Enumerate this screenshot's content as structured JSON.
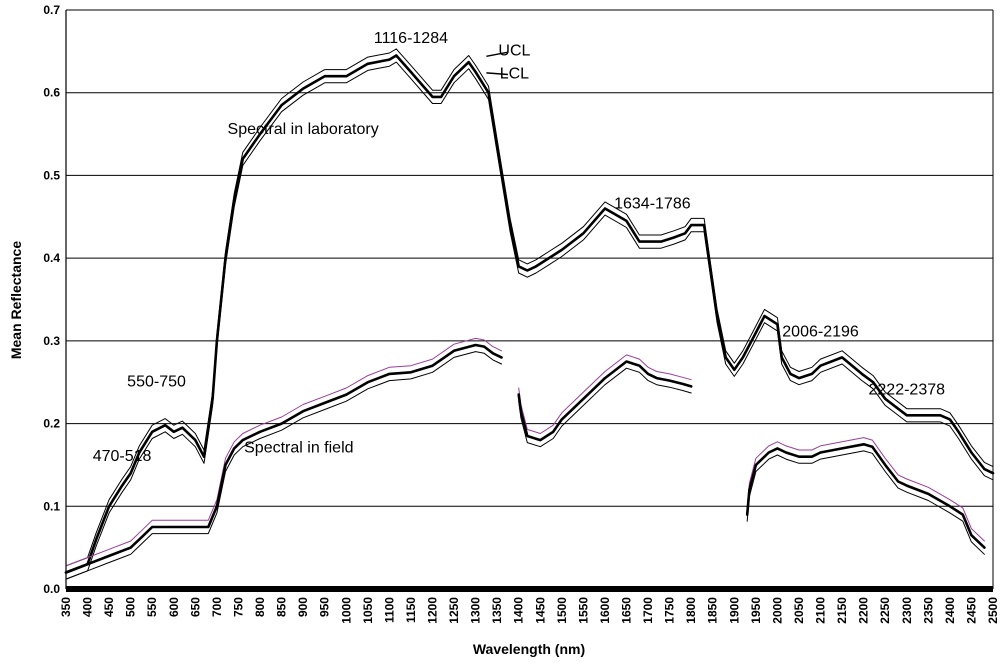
{
  "chart_data": {
    "type": "line",
    "title": "",
    "xlabel": "Wavelength (nm)",
    "ylabel": "Mean Reflectance",
    "xlim": [
      350,
      2500
    ],
    "ylim": [
      0,
      0.7
    ],
    "grid": true,
    "x_ticks": [
      350,
      400,
      450,
      500,
      550,
      600,
      650,
      700,
      750,
      800,
      850,
      900,
      950,
      1000,
      1050,
      1100,
      1150,
      1200,
      1250,
      1300,
      1350,
      1400,
      1450,
      1500,
      1550,
      1600,
      1650,
      1700,
      1750,
      1800,
      1850,
      1900,
      1950,
      2000,
      2050,
      2100,
      2150,
      2200,
      2250,
      2300,
      2350,
      2400,
      2450,
      2500
    ],
    "y_ticks": [
      0,
      0.1,
      0.2,
      0.3,
      0.4,
      0.5,
      0.6,
      0.7
    ],
    "y_tick_labels": [
      "0.0",
      "0.1",
      "0.2",
      "0.3",
      "0.4",
      "0.5",
      "0.6",
      "0.7"
    ],
    "annotations": [
      {
        "text": "470-518",
        "x": 480,
        "y": 0.155
      },
      {
        "text": "550-750",
        "x": 560,
        "y": 0.245
      },
      {
        "text": "1116-1284",
        "x": 1150,
        "y": 0.66
      },
      {
        "text": "UCL",
        "x": 1390,
        "y": 0.645
      },
      {
        "text": "LCL",
        "x": 1390,
        "y": 0.617
      },
      {
        "text": "Spectral in laboratory",
        "x": 900,
        "y": 0.55
      },
      {
        "text": "1634-1786",
        "x": 1710,
        "y": 0.46
      },
      {
        "text": "2006-2196",
        "x": 2100,
        "y": 0.305
      },
      {
        "text": "2222-2378",
        "x": 2300,
        "y": 0.235
      },
      {
        "text": "Spectral in field",
        "x": 890,
        "y": 0.165
      }
    ],
    "series": [
      {
        "name": "Spectral in laboratory (mean)",
        "color": "#000000",
        "x": [
          350,
          400,
          420,
          450,
          480,
          500,
          520,
          550,
          580,
          600,
          620,
          650,
          670,
          690,
          700,
          720,
          740,
          760,
          800,
          850,
          900,
          950,
          1000,
          1050,
          1100,
          1116,
          1150,
          1200,
          1220,
          1250,
          1284,
          1300,
          1330,
          1350,
          1380,
          1400,
          1420,
          1440,
          1470,
          1500,
          1550,
          1600,
          1650,
          1680,
          1700,
          1730,
          1760,
          1786,
          1800,
          1830,
          1860,
          1880,
          1900,
          1920,
          1950,
          1970,
          2000,
          2010,
          2030,
          2050,
          2080,
          2100,
          2150,
          2196,
          2222,
          2250,
          2300,
          2350,
          2378,
          2400,
          2420,
          2450,
          2480,
          2500
        ],
        "values": [
          0.02,
          0.03,
          0.06,
          0.1,
          0.125,
          0.14,
          0.165,
          0.19,
          0.198,
          0.19,
          0.195,
          0.18,
          0.16,
          0.23,
          0.3,
          0.4,
          0.47,
          0.52,
          0.55,
          0.585,
          0.605,
          0.62,
          0.62,
          0.635,
          0.64,
          0.645,
          0.625,
          0.595,
          0.595,
          0.62,
          0.637,
          0.625,
          0.6,
          0.535,
          0.44,
          0.39,
          0.385,
          0.39,
          0.4,
          0.41,
          0.43,
          0.46,
          0.445,
          0.42,
          0.42,
          0.42,
          0.425,
          0.43,
          0.44,
          0.44,
          0.33,
          0.28,
          0.265,
          0.28,
          0.31,
          0.33,
          0.32,
          0.28,
          0.26,
          0.255,
          0.26,
          0.27,
          0.28,
          0.26,
          0.25,
          0.23,
          0.21,
          0.21,
          0.21,
          0.205,
          0.19,
          0.165,
          0.145,
          0.14
        ]
      },
      {
        "name": "Spectral in field (mean) segment 1",
        "color": "#000000",
        "x": [
          350,
          400,
          450,
          500,
          520,
          550,
          580,
          600,
          650,
          680,
          700,
          720,
          740,
          760,
          800,
          850,
          900,
          950,
          1000,
          1050,
          1100,
          1150,
          1200,
          1250,
          1300,
          1320,
          1340,
          1360
        ],
        "values": [
          0.02,
          0.03,
          0.04,
          0.05,
          0.06,
          0.075,
          0.075,
          0.075,
          0.075,
          0.075,
          0.1,
          0.15,
          0.17,
          0.18,
          0.19,
          0.2,
          0.215,
          0.225,
          0.235,
          0.25,
          0.26,
          0.262,
          0.27,
          0.288,
          0.295,
          0.293,
          0.285,
          0.28
        ]
      },
      {
        "name": "Spectral in field (mean) segment 2",
        "color": "#000000",
        "x": [
          1400,
          1405,
          1420,
          1450,
          1480,
          1500,
          1550,
          1600,
          1650,
          1680,
          1700,
          1720,
          1750,
          1780,
          1800
        ],
        "values": [
          0.235,
          0.215,
          0.185,
          0.18,
          0.19,
          0.205,
          0.23,
          0.255,
          0.275,
          0.27,
          0.26,
          0.255,
          0.252,
          0.248,
          0.245
        ]
      },
      {
        "name": "Spectral in field (mean) segment 3",
        "color": "#000000",
        "x": [
          1930,
          1935,
          1950,
          1980,
          2000,
          2020,
          2050,
          2080,
          2100,
          2150,
          2200,
          2220,
          2250,
          2280,
          2300,
          2350,
          2400,
          2430,
          2450,
          2480
        ],
        "values": [
          0.09,
          0.12,
          0.15,
          0.165,
          0.17,
          0.165,
          0.16,
          0.16,
          0.165,
          0.17,
          0.175,
          0.172,
          0.15,
          0.13,
          0.125,
          0.115,
          0.1,
          0.09,
          0.065,
          0.05
        ]
      }
    ]
  }
}
